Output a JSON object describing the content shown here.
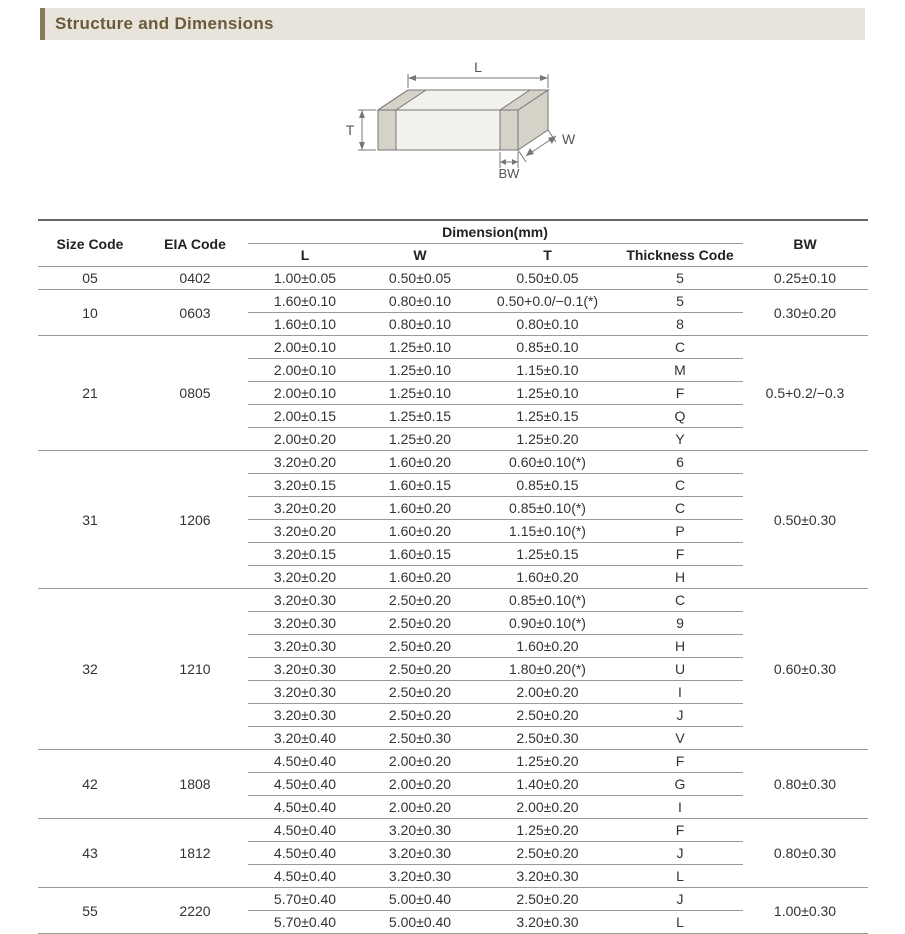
{
  "title": "Structure and Dimensions",
  "diagram": {
    "labels": {
      "L": "L",
      "W": "W",
      "T": "T",
      "BW": "BW"
    },
    "stroke": "#777777",
    "fill": "#f3f1ed",
    "fill_dark": "#d6d2c8",
    "text_color": "#555555",
    "font_size": 14
  },
  "headers": {
    "size_code": "Size Code",
    "eia_code": "EIA Code",
    "dimension_group": "Dimension(mm)",
    "L": "L",
    "W": "W",
    "T": "T",
    "thickness_code": "Thickness Code",
    "BW": "BW"
  },
  "groups": [
    {
      "size": "05",
      "eia": "0402",
      "bw": "0.25±0.10",
      "rows": [
        {
          "L": "1.00±0.05",
          "W": "0.50±0.05",
          "T": "0.50±0.05",
          "tc": "5"
        }
      ]
    },
    {
      "size": "10",
      "eia": "0603",
      "bw": "0.30±0.20",
      "rows": [
        {
          "L": "1.60±0.10",
          "W": "0.80±0.10",
          "T": "0.50+0.0/−0.1(*)",
          "tc": "5"
        },
        {
          "L": "1.60±0.10",
          "W": "0.80±0.10",
          "T": "0.80±0.10",
          "tc": "8"
        }
      ]
    },
    {
      "size": "21",
      "eia": "0805",
      "bw": "0.5+0.2/−0.3",
      "rows": [
        {
          "L": "2.00±0.10",
          "W": "1.25±0.10",
          "T": "0.85±0.10",
          "tc": "C"
        },
        {
          "L": "2.00±0.10",
          "W": "1.25±0.10",
          "T": "1.15±0.10",
          "tc": "M"
        },
        {
          "L": "2.00±0.10",
          "W": "1.25±0.10",
          "T": "1.25±0.10",
          "tc": "F"
        },
        {
          "L": "2.00±0.15",
          "W": "1.25±0.15",
          "T": "1.25±0.15",
          "tc": "Q"
        },
        {
          "L": "2.00±0.20",
          "W": "1.25±0.20",
          "T": "1.25±0.20",
          "tc": "Y"
        }
      ]
    },
    {
      "size": "31",
      "eia": "1206",
      "bw": "0.50±0.30",
      "rows": [
        {
          "L": "3.20±0.20",
          "W": "1.60±0.20",
          "T": "0.60±0.10(*)",
          "tc": "6"
        },
        {
          "L": "3.20±0.15",
          "W": "1.60±0.15",
          "T": "0.85±0.15",
          "tc": "C"
        },
        {
          "L": "3.20±0.20",
          "W": "1.60±0.20",
          "T": "0.85±0.10(*)",
          "tc": "C"
        },
        {
          "L": "3.20±0.20",
          "W": "1.60±0.20",
          "T": "1.15±0.10(*)",
          "tc": "P"
        },
        {
          "L": "3.20±0.15",
          "W": "1.60±0.15",
          "T": "1.25±0.15",
          "tc": "F"
        },
        {
          "L": "3.20±0.20",
          "W": "1.60±0.20",
          "T": "1.60±0.20",
          "tc": "H"
        }
      ]
    },
    {
      "size": "32",
      "eia": "1210",
      "bw": "0.60±0.30",
      "rows": [
        {
          "L": "3.20±0.30",
          "W": "2.50±0.20",
          "T": "0.85±0.10(*)",
          "tc": "C"
        },
        {
          "L": "3.20±0.30",
          "W": "2.50±0.20",
          "T": "0.90±0.10(*)",
          "tc": "9"
        },
        {
          "L": "3.20±0.30",
          "W": "2.50±0.20",
          "T": "1.60±0.20",
          "tc": "H"
        },
        {
          "L": "3.20±0.30",
          "W": "2.50±0.20",
          "T": "1.80±0.20(*)",
          "tc": "U"
        },
        {
          "L": "3.20±0.30",
          "W": "2.50±0.20",
          "T": "2.00±0.20",
          "tc": "I"
        },
        {
          "L": "3.20±0.30",
          "W": "2.50±0.20",
          "T": "2.50±0.20",
          "tc": "J"
        },
        {
          "L": "3.20±0.40",
          "W": "2.50±0.30",
          "T": "2.50±0.30",
          "tc": "V"
        }
      ]
    },
    {
      "size": "42",
      "eia": "1808",
      "bw": "0.80±0.30",
      "rows": [
        {
          "L": "4.50±0.40",
          "W": "2.00±0.20",
          "T": "1.25±0.20",
          "tc": "F"
        },
        {
          "L": "4.50±0.40",
          "W": "2.00±0.20",
          "T": "1.40±0.20",
          "tc": "G"
        },
        {
          "L": "4.50±0.40",
          "W": "2.00±0.20",
          "T": "2.00±0.20",
          "tc": "I"
        }
      ]
    },
    {
      "size": "43",
      "eia": "1812",
      "bw": "0.80±0.30",
      "rows": [
        {
          "L": "4.50±0.40",
          "W": "3.20±0.30",
          "T": "1.25±0.20",
          "tc": "F"
        },
        {
          "L": "4.50±0.40",
          "W": "3.20±0.30",
          "T": "2.50±0.20",
          "tc": "J"
        },
        {
          "L": "4.50±0.40",
          "W": "3.20±0.30",
          "T": "3.20±0.30",
          "tc": "L"
        }
      ]
    },
    {
      "size": "55",
      "eia": "2220",
      "bw": "1.00±0.30",
      "rows": [
        {
          "L": "5.70±0.40",
          "W": "5.00±0.40",
          "T": "2.50±0.20",
          "tc": "J"
        },
        {
          "L": "5.70±0.40",
          "W": "5.00±0.40",
          "T": "3.20±0.30",
          "tc": "L"
        }
      ]
    }
  ]
}
